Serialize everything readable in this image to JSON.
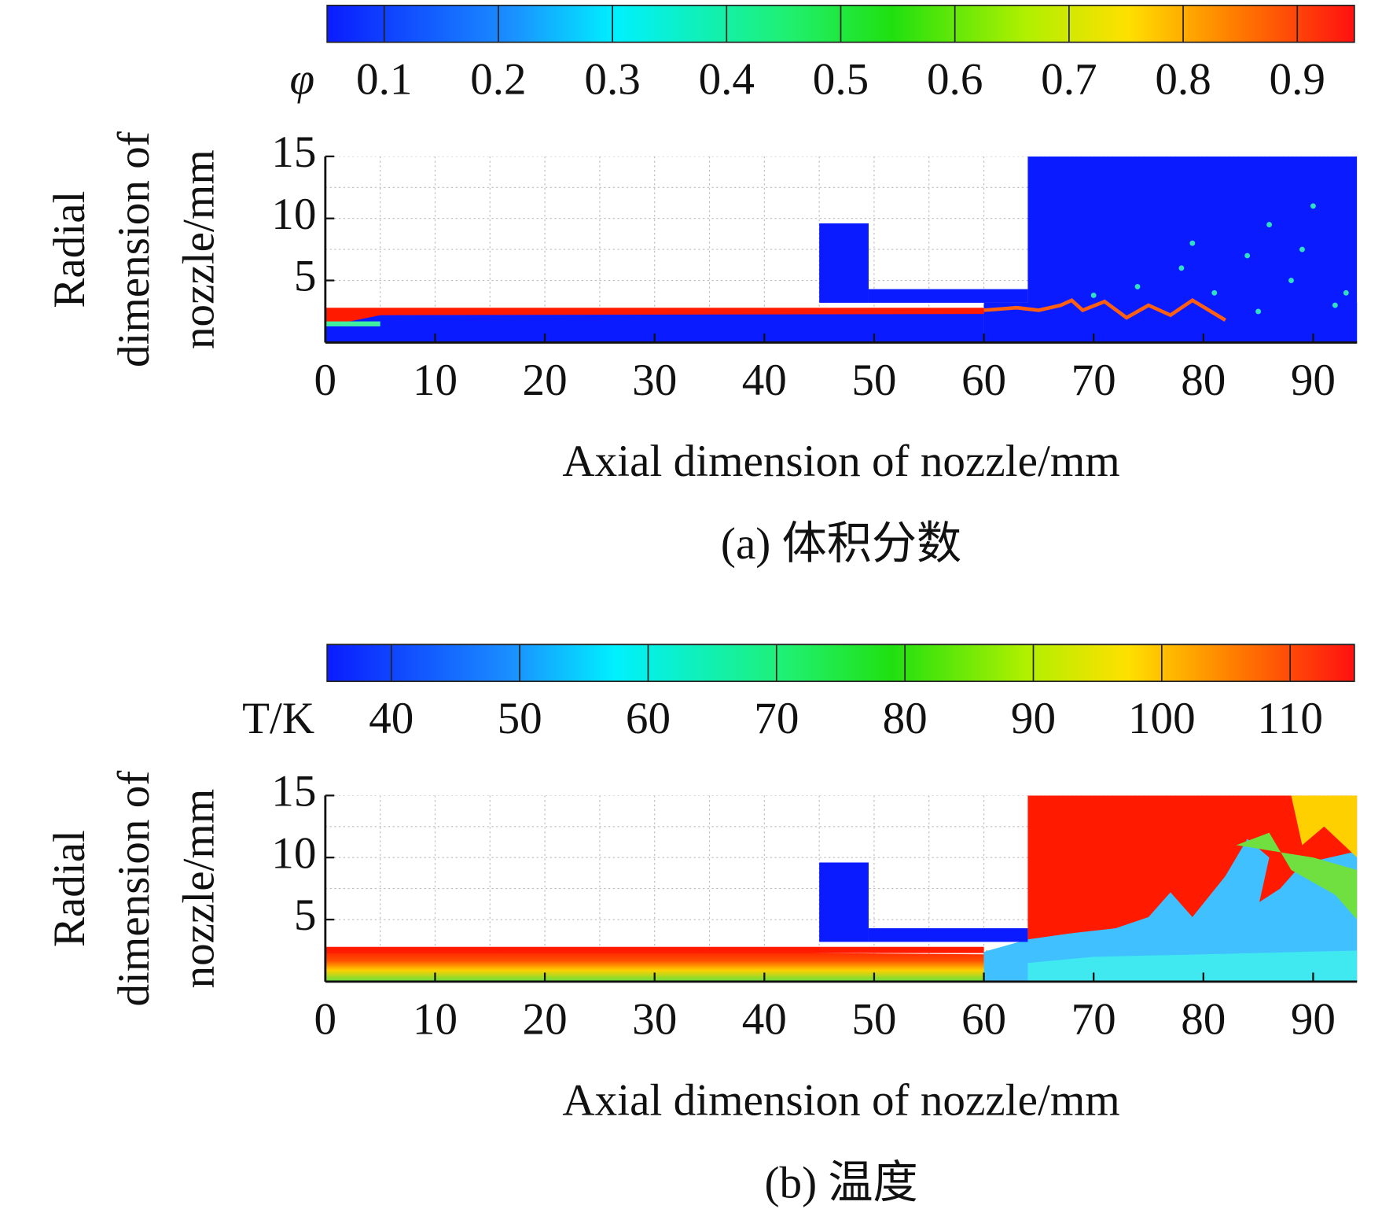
{
  "chart_data": [
    {
      "type": "contour",
      "title": "(a) 体积分数",
      "xlabel": "Axial dimension of nozzle/mm",
      "ylabel": [
        "Radial",
        "dimension of",
        "nozzle/mm"
      ],
      "xlim": [
        0,
        94
      ],
      "xticks": [
        0,
        10,
        20,
        30,
        40,
        50,
        60,
        70,
        80,
        90
      ],
      "ylim": [
        0,
        15
      ],
      "yticks": [
        5,
        10,
        15
      ],
      "grid": true,
      "colorbar": {
        "label": "φ",
        "lim": [
          0.05,
          0.95
        ],
        "ticks": [
          0.1,
          0.2,
          0.3,
          0.4,
          0.5,
          0.6,
          0.7,
          0.8,
          0.9
        ]
      }
    },
    {
      "type": "contour",
      "title": "(b) 温度",
      "xlabel": "Axial dimension of nozzle/mm",
      "ylabel": [
        "Radial",
        "dimension of",
        "nozzle/mm"
      ],
      "xlim": [
        0,
        94
      ],
      "xticks": [
        0,
        10,
        20,
        30,
        40,
        50,
        60,
        70,
        80,
        90
      ],
      "ylim": [
        0,
        15
      ],
      "yticks": [
        5,
        10,
        15
      ],
      "grid": true,
      "colorbar": {
        "label": "T/K",
        "lim": [
          35,
          115
        ],
        "ticks": [
          40,
          50,
          60,
          70,
          80,
          90,
          100,
          110
        ]
      }
    }
  ]
}
